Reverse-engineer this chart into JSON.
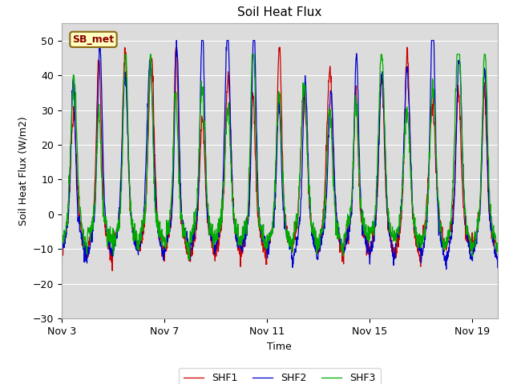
{
  "title": "Soil Heat Flux",
  "xlabel": "Time",
  "ylabel": "Soil Heat Flux (W/m2)",
  "ylim": [
    -30,
    55
  ],
  "yticks": [
    -30,
    -20,
    -10,
    0,
    10,
    20,
    30,
    40,
    50
  ],
  "xtick_labels": [
    "Nov 3",
    "Nov 7",
    "Nov 11",
    "Nov 15",
    "Nov 19"
  ],
  "xtick_positions": [
    0,
    4,
    8,
    12,
    16
  ],
  "annotation_label": "SB_met",
  "legend_labels": [
    "SHF1",
    "SHF2",
    "SHF3"
  ],
  "line_colors": [
    "#cc0000",
    "#0000cc",
    "#00aa00"
  ],
  "bg_color": "#dcdcdc",
  "fig_color": "#ffffff",
  "n_days": 17,
  "points_per_day": 96,
  "random_seed": 7
}
